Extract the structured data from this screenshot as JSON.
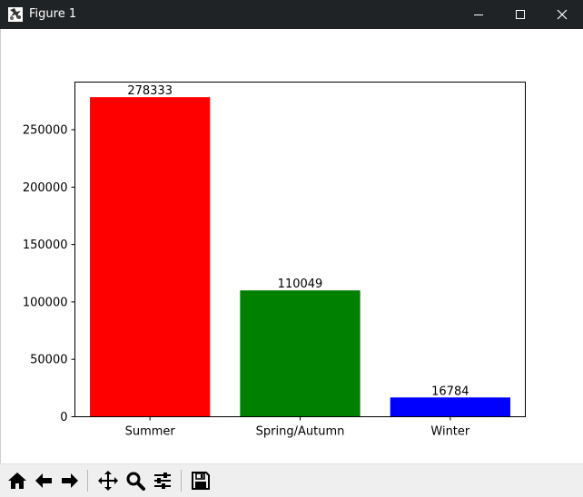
{
  "window": {
    "title": "Figure 1",
    "icons": [
      "figure-app-icon",
      "minimize-icon",
      "maximize-icon",
      "close-icon"
    ]
  },
  "toolbar": {
    "buttons": [
      "home-icon",
      "back-icon",
      "forward-icon",
      "pan-icon",
      "zoom-icon",
      "configure-subplots-icon",
      "save-icon"
    ]
  },
  "chart_data": {
    "type": "bar",
    "categories": [
      "Summer",
      "Spring/Autumn",
      "Winter"
    ],
    "values": [
      278333,
      110049,
      16784
    ],
    "value_labels": [
      "278333",
      "110049",
      "16784"
    ],
    "colors": [
      "#ff0000",
      "#008000",
      "#0000ff"
    ],
    "title": "",
    "xlabel": "",
    "ylabel": "",
    "ylim": [
      0,
      291500
    ],
    "yticks": [
      0,
      50000,
      100000,
      150000,
      200000,
      250000
    ],
    "ytick_labels": [
      "0",
      "50000",
      "100000",
      "150000",
      "200000",
      "250000"
    ],
    "grid": false,
    "legend": "none"
  }
}
